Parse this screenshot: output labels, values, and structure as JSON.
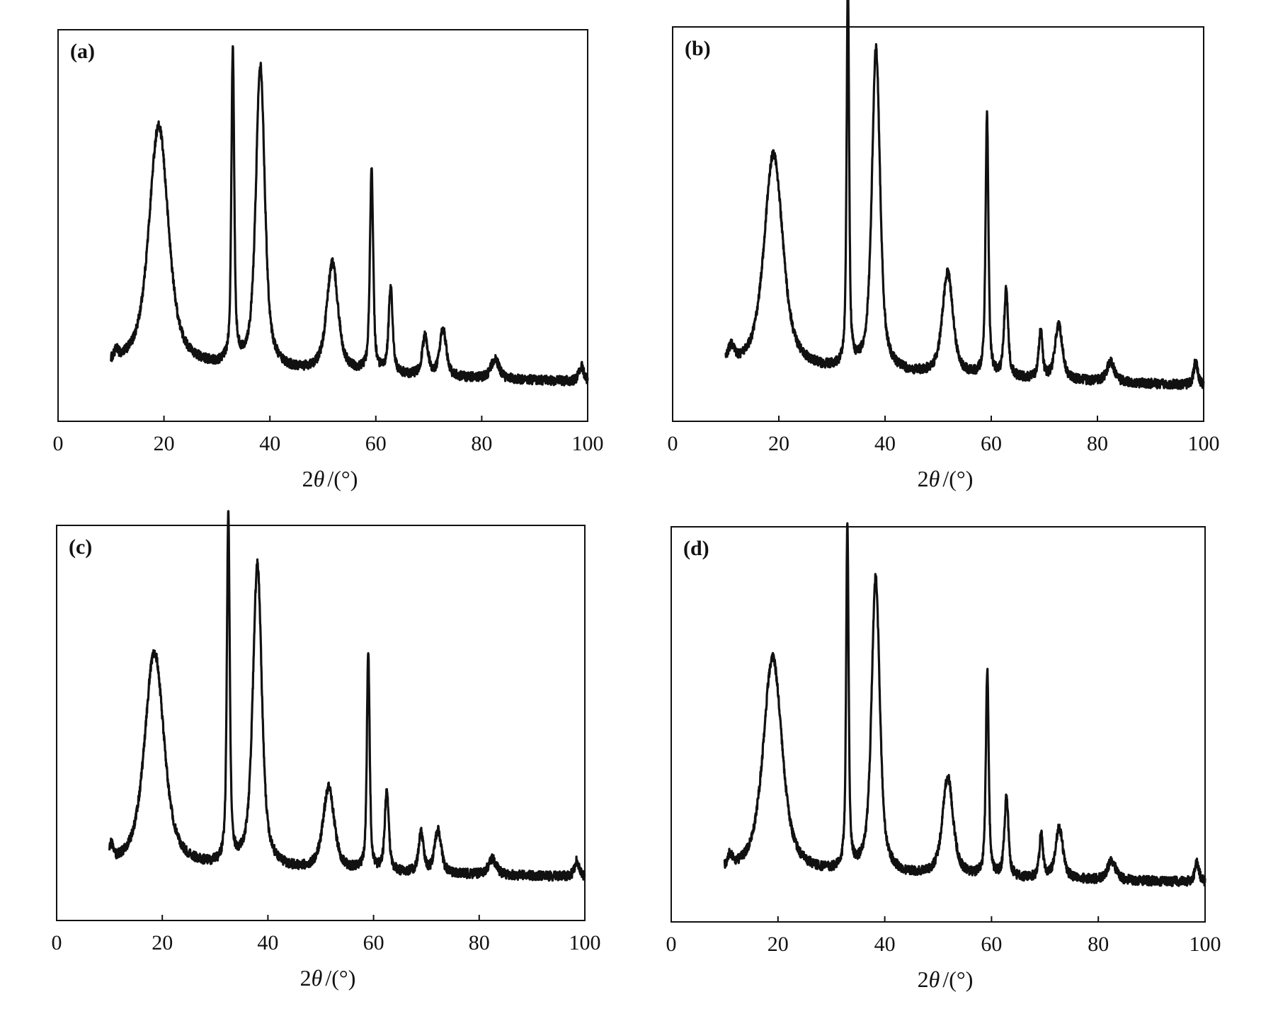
{
  "chart_data": [
    {
      "type": "line",
      "panel_label": "(a)",
      "xlabel_prefix": "2",
      "xlabel_symbol": "θ",
      "xlabel_unit": "/(°)",
      "xticks": [
        "0",
        "20",
        "40",
        "60",
        "80",
        "100"
      ],
      "xlim": [
        0,
        100
      ],
      "ylim": [
        0,
        1
      ],
      "x_start": 10,
      "x_end": 100,
      "baseline": 0.135,
      "tail": 0.1,
      "noise": 0.012,
      "peaks": [
        {
          "x": 11.0,
          "h": 0.02,
          "w": 0.5
        },
        {
          "x": 19.0,
          "h": 0.62,
          "w": 2.4
        },
        {
          "x": 33.0,
          "h": 0.8,
          "w": 0.35
        },
        {
          "x": 38.2,
          "h": 0.78,
          "w": 1.1
        },
        {
          "x": 51.8,
          "h": 0.28,
          "w": 1.4
        },
        {
          "x": 59.2,
          "h": 0.52,
          "w": 0.4
        },
        {
          "x": 62.8,
          "h": 0.22,
          "w": 0.5
        },
        {
          "x": 69.3,
          "h": 0.1,
          "w": 0.7
        },
        {
          "x": 72.7,
          "h": 0.12,
          "w": 0.8
        },
        {
          "x": 82.5,
          "h": 0.05,
          "w": 1.0
        },
        {
          "x": 98.8,
          "h": 0.04,
          "w": 0.6
        }
      ]
    },
    {
      "type": "line",
      "panel_label": "(b)",
      "xlabel_prefix": "2",
      "xlabel_symbol": "θ",
      "xlabel_unit": "/(°)",
      "xticks": [
        "0",
        "20",
        "40",
        "60",
        "80",
        "100"
      ],
      "xlim": [
        0,
        100
      ],
      "ylim": [
        0,
        1
      ],
      "x_start": 10,
      "x_end": 100,
      "baseline": 0.13,
      "tail": 0.09,
      "noise": 0.012,
      "peaks": [
        {
          "x": 11.0,
          "h": 0.04,
          "w": 0.8
        },
        {
          "x": 19.0,
          "h": 0.55,
          "w": 2.3
        },
        {
          "x": 33.0,
          "h": 0.98,
          "w": 0.3
        },
        {
          "x": 38.3,
          "h": 0.82,
          "w": 1.0
        },
        {
          "x": 51.8,
          "h": 0.26,
          "w": 1.3
        },
        {
          "x": 59.2,
          "h": 0.66,
          "w": 0.35
        },
        {
          "x": 62.8,
          "h": 0.22,
          "w": 0.5
        },
        {
          "x": 69.3,
          "h": 0.12,
          "w": 0.45
        },
        {
          "x": 72.7,
          "h": 0.14,
          "w": 0.9
        },
        {
          "x": 82.5,
          "h": 0.05,
          "w": 1.0
        },
        {
          "x": 98.5,
          "h": 0.06,
          "w": 0.5
        }
      ]
    },
    {
      "type": "line",
      "panel_label": "(c)",
      "xlabel_prefix": "2",
      "xlabel_symbol": "θ",
      "xlabel_unit": "/(°)",
      "xticks": [
        "0",
        "20",
        "40",
        "60",
        "80",
        "100"
      ],
      "xlim": [
        0,
        100
      ],
      "ylim": [
        0,
        1
      ],
      "x_start": 10,
      "x_end": 100,
      "baseline": 0.13,
      "tail": 0.11,
      "noise": 0.012,
      "peaks": [
        {
          "x": 10.3,
          "h": 0.04,
          "w": 0.5
        },
        {
          "x": 18.5,
          "h": 0.55,
          "w": 2.4
        },
        {
          "x": 32.5,
          "h": 0.88,
          "w": 0.35
        },
        {
          "x": 38.0,
          "h": 0.77,
          "w": 1.1
        },
        {
          "x": 51.5,
          "h": 0.21,
          "w": 1.4
        },
        {
          "x": 59.0,
          "h": 0.55,
          "w": 0.35
        },
        {
          "x": 62.5,
          "h": 0.2,
          "w": 0.5
        },
        {
          "x": 69.0,
          "h": 0.1,
          "w": 0.6
        },
        {
          "x": 72.2,
          "h": 0.11,
          "w": 0.8
        },
        {
          "x": 82.5,
          "h": 0.04,
          "w": 1.0
        },
        {
          "x": 98.5,
          "h": 0.04,
          "w": 0.6
        }
      ]
    },
    {
      "type": "line",
      "panel_label": "(d)",
      "xlabel_prefix": "2",
      "xlabel_symbol": "θ",
      "xlabel_unit": "/(°)",
      "xticks": [
        "0",
        "20",
        "40",
        "60",
        "80",
        "100"
      ],
      "xlim": [
        0,
        100
      ],
      "ylim": [
        0,
        1
      ],
      "x_start": 10,
      "x_end": 100,
      "baseline": 0.12,
      "tail": 0.1,
      "noise": 0.012,
      "peaks": [
        {
          "x": 11.0,
          "h": 0.03,
          "w": 0.6
        },
        {
          "x": 19.0,
          "h": 0.55,
          "w": 2.3
        },
        {
          "x": 33.0,
          "h": 0.88,
          "w": 0.3
        },
        {
          "x": 38.3,
          "h": 0.75,
          "w": 1.0
        },
        {
          "x": 51.8,
          "h": 0.25,
          "w": 1.3
        },
        {
          "x": 59.2,
          "h": 0.52,
          "w": 0.35
        },
        {
          "x": 62.8,
          "h": 0.2,
          "w": 0.5
        },
        {
          "x": 69.3,
          "h": 0.11,
          "w": 0.45
        },
        {
          "x": 72.7,
          "h": 0.13,
          "w": 0.9
        },
        {
          "x": 82.5,
          "h": 0.05,
          "w": 1.0
        },
        {
          "x": 98.5,
          "h": 0.05,
          "w": 0.5
        }
      ]
    }
  ]
}
